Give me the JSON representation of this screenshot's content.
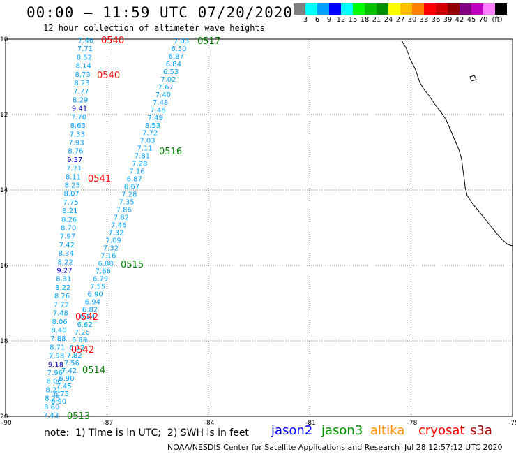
{
  "header": {
    "title": "00:00 – 11:59 UTC 07/20/2020",
    "subtitle": "12 hour collection of altimeter wave heights"
  },
  "colorbar": {
    "unit": "(ft)",
    "colors": [
      "#808080",
      "#00ffff",
      "#00a0ff",
      "#0000ff",
      "#00ffff",
      "#00ff00",
      "#00c000",
      "#009000",
      "#ffff00",
      "#ffc000",
      "#ff8000",
      "#ff0000",
      "#d00000",
      "#900000",
      "#800080",
      "#c000c0",
      "#ff80ff",
      "#000000"
    ],
    "labels": [
      "3",
      "6",
      "9",
      "12",
      "15",
      "18",
      "21",
      "24",
      "27",
      "30",
      "33",
      "36",
      "39",
      "42",
      "45",
      "70"
    ]
  },
  "axes": {
    "lat_labels": [
      "10",
      "12",
      "14",
      "16",
      "18",
      "20"
    ],
    "lon_labels": [
      "-90",
      "-87",
      "-84",
      "-81",
      "-78",
      "-75"
    ]
  },
  "tracks": {
    "track_a": [
      "7.46",
      "7.71",
      "8.52",
      "8.14",
      "8.73",
      "8.23",
      "7.77",
      "8.29",
      "9.41",
      "7.70",
      "8.63",
      "7.33",
      "7.93",
      "8.76",
      "9.37",
      "7.71",
      "8.11",
      "8.25",
      "8.07",
      "7.75",
      "8.21",
      "8.26",
      "8.70",
      "7.97",
      "7.42",
      "8.34",
      "8.22",
      "9.27",
      "8.31",
      "8.22",
      "8.26",
      "7.72",
      "7.48",
      "8.06",
      "8.40",
      "7.88",
      "8.71",
      "7.98",
      "9.18",
      "7.96",
      "8.06",
      "8.21",
      "8.25",
      "8.60",
      "7.43"
    ],
    "track_b": [
      "7.03",
      "6.50",
      "6.87",
      "6.84",
      "6.53",
      "7.02",
      "7.67",
      "7.40",
      "7.48",
      "7.46",
      "7.49",
      "8.53",
      "7.72",
      "7.03",
      "7.11",
      "7.81",
      "7.28",
      "7.16",
      "6.87",
      "6.67",
      "7.28",
      "7.35",
      "7.86",
      "7.82",
      "7.46",
      "7.32",
      "7.09",
      "7.32",
      "7.16",
      "6.88",
      "7.66",
      "6.79",
      "7.55",
      "6.90",
      "6.94",
      "6.82",
      "6.54",
      "6.62",
      "7.26",
      "6.89",
      "6.12",
      "7.82",
      "7.56",
      "7.42",
      "6.90",
      "7.45",
      "6.75",
      "6.90"
    ]
  },
  "times": [
    {
      "t": "0540",
      "color": "#ff0000"
    },
    {
      "t": "0540",
      "color": "#ff0000"
    },
    {
      "t": "0541",
      "color": "#ff0000"
    },
    {
      "t": "0542",
      "color": "#ff0000"
    },
    {
      "t": "0542",
      "color": "#ff0000"
    },
    {
      "t": "0517",
      "color": "#008000"
    },
    {
      "t": "0516",
      "color": "#008000"
    },
    {
      "t": "0515",
      "color": "#008000"
    },
    {
      "t": "0514",
      "color": "#008000"
    },
    {
      "t": "0513",
      "color": "#008000"
    }
  ],
  "colors": {
    "value_cyan": "#00a0ff",
    "value_blue": "#0000c0"
  },
  "note": "note:  1) Time is in UTC;  2) SWH is in feet",
  "legend": [
    {
      "name": "jason2",
      "color": "#0000ff"
    },
    {
      "name": "jason3",
      "color": "#009000"
    },
    {
      "name": "altika",
      "color": "#ff9000"
    },
    {
      "name": "cryosat",
      "color": "#ff0000"
    },
    {
      "name": "s3a",
      "color": "#a00000"
    }
  ],
  "footer": {
    "credit": "NOAA/NESDIS Center for Satellite Applications and Research",
    "stamp": "Jul 28 12:57:12 UTC 2020"
  }
}
